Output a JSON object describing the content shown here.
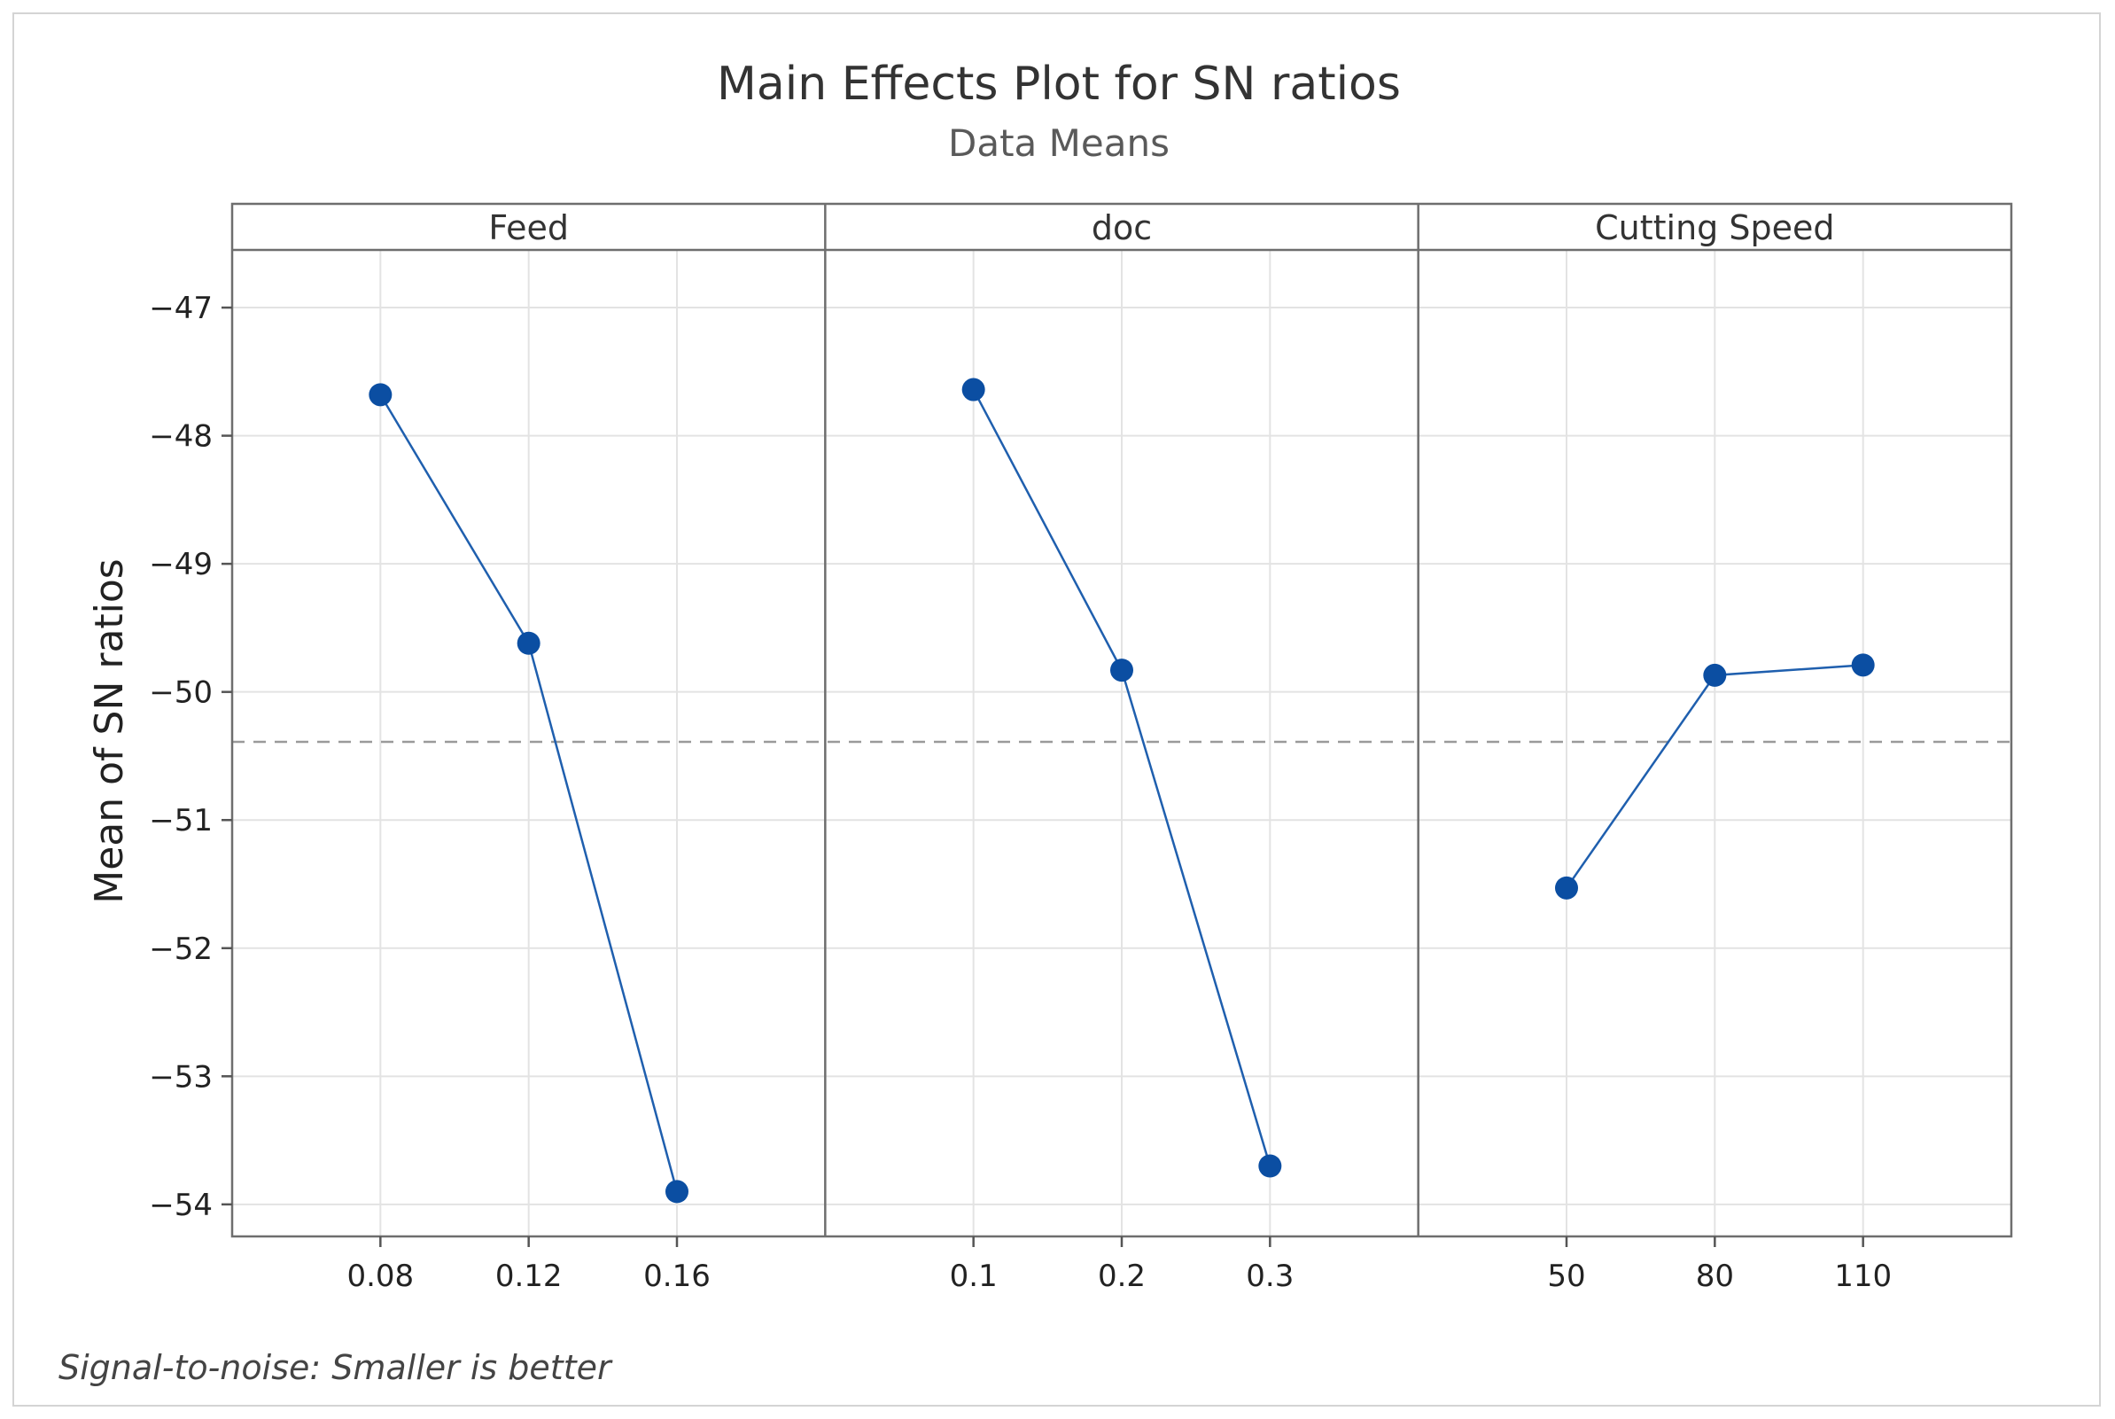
{
  "chart_data": {
    "type": "line",
    "title": "Main Effects Plot for SN ratios",
    "subtitle": "Data Means",
    "ylabel": "Mean of SN ratios",
    "ylim": [
      -54.25,
      -46.55
    ],
    "yticks": [
      -47,
      -48,
      -49,
      -50,
      -51,
      -52,
      -53,
      -54
    ],
    "ytick_labels": [
      "−47",
      "−48",
      "−49",
      "−50",
      "−51",
      "−52",
      "−53",
      "−54"
    ],
    "reference_line": -50.39,
    "footnote": "Signal-to-noise: Smaller is better",
    "colors": {
      "series": "#1f5fae",
      "marker": "#0b4ea2",
      "reference": "#9a9a9a",
      "grid": "#e3e3e3"
    },
    "panels": [
      {
        "name": "Feed",
        "categories": [
          "0.08",
          "0.12",
          "0.16"
        ],
        "values": [
          -47.68,
          -49.62,
          -53.9
        ]
      },
      {
        "name": "doc",
        "categories": [
          "0.1",
          "0.2",
          "0.3"
        ],
        "values": [
          -47.64,
          -49.83,
          -53.7
        ]
      },
      {
        "name": "Cutting Speed",
        "categories": [
          "50",
          "80",
          "110"
        ],
        "values": [
          -51.53,
          -49.87,
          -49.79
        ]
      }
    ]
  }
}
